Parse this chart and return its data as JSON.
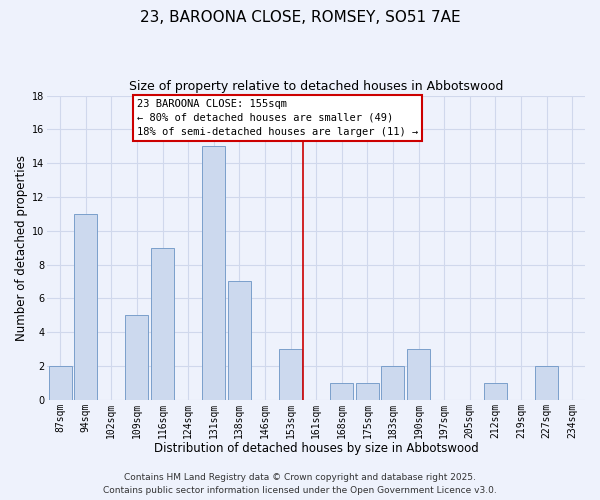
{
  "title": "23, BAROONA CLOSE, ROMSEY, SO51 7AE",
  "subtitle": "Size of property relative to detached houses in Abbotswood",
  "xlabel": "Distribution of detached houses by size in Abbotswood",
  "ylabel": "Number of detached properties",
  "bar_labels": [
    "87sqm",
    "94sqm",
    "102sqm",
    "109sqm",
    "116sqm",
    "124sqm",
    "131sqm",
    "138sqm",
    "146sqm",
    "153sqm",
    "161sqm",
    "168sqm",
    "175sqm",
    "183sqm",
    "190sqm",
    "197sqm",
    "205sqm",
    "212sqm",
    "219sqm",
    "227sqm",
    "234sqm"
  ],
  "bar_values": [
    2,
    11,
    0,
    5,
    9,
    0,
    15,
    7,
    0,
    3,
    0,
    1,
    1,
    2,
    3,
    0,
    0,
    1,
    0,
    2,
    0
  ],
  "bar_color": "#ccd9ee",
  "bar_edge_color": "#7a9fcb",
  "vline_x": 9.5,
  "vline_color": "#cc0000",
  "ylim": [
    0,
    18
  ],
  "yticks": [
    0,
    2,
    4,
    6,
    8,
    10,
    12,
    14,
    16,
    18
  ],
  "annotation_title": "23 BAROONA CLOSE: 155sqm",
  "annotation_line1": "← 80% of detached houses are smaller (49)",
  "annotation_line2": "18% of semi-detached houses are larger (11) →",
  "annotation_box_color": "#ffffff",
  "annotation_box_edge": "#cc0000",
  "bg_color": "#eef2fc",
  "grid_color": "#d0d8ec",
  "footer1": "Contains HM Land Registry data © Crown copyright and database right 2025.",
  "footer2": "Contains public sector information licensed under the Open Government Licence v3.0.",
  "title_fontsize": 11,
  "subtitle_fontsize": 9,
  "xlabel_fontsize": 8.5,
  "ylabel_fontsize": 8.5,
  "tick_fontsize": 7,
  "footer_fontsize": 6.5,
  "ann_fontsize": 7.5
}
